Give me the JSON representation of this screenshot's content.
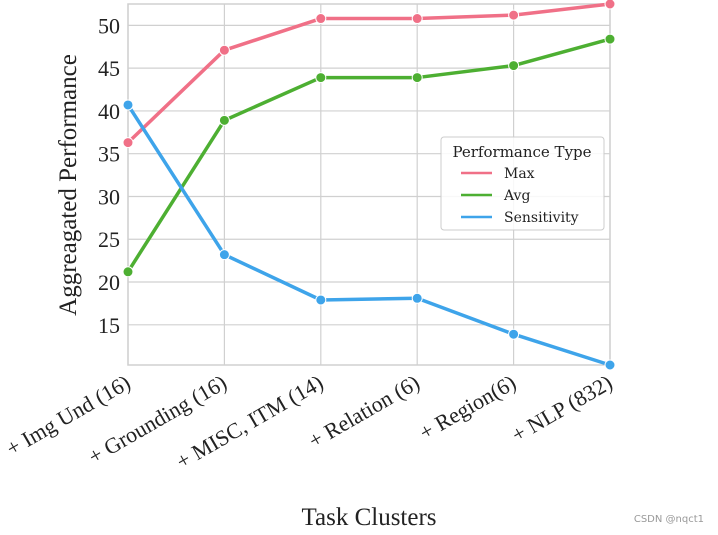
{
  "chart_data": {
    "type": "line",
    "title": "",
    "xlabel": "Task Clusters",
    "ylabel": "Aggreagated Performance",
    "categories": [
      "+ Img Und (16)",
      "+ Grounding (16)",
      "+ MISC, ITM (14)",
      "+ Relation (6)",
      "+ Region(6)",
      "+ NLP (832)"
    ],
    "ylim": [
      10.3,
      52.5
    ],
    "yticks": [
      15,
      20,
      25,
      30,
      35,
      40,
      45,
      50
    ],
    "grid": true,
    "legend": {
      "title": "Performance Type",
      "placement": "center-right"
    },
    "series": [
      {
        "name": "Max",
        "color": "#f07087",
        "values": [
          36.3,
          47.1,
          50.8,
          50.8,
          51.2,
          52.5
        ]
      },
      {
        "name": "Avg",
        "color": "#4daf32",
        "values": [
          21.2,
          38.9,
          43.9,
          43.9,
          45.3,
          48.4
        ]
      },
      {
        "name": "Sensitivity",
        "color": "#3ea4ea",
        "values": [
          40.7,
          23.2,
          17.9,
          18.1,
          13.9,
          10.3
        ]
      }
    ]
  },
  "watermark": "CSDN @nqct1"
}
